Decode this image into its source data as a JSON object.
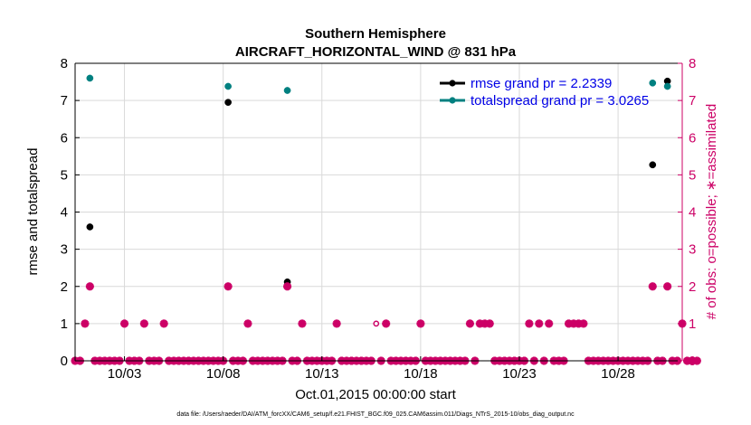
{
  "chart_data": {
    "type": "scatter",
    "title": "Southern Hemisphere",
    "subtitle": "AIRCRAFT_HORIZONTAL_WIND @ 831 hPa",
    "xlabel": "Oct.01,2015 00:00:00 start",
    "ylabel_left": "rmse and totalspread",
    "ylabel_right": "# of obs: o=possible; ∗=assimilated",
    "footnote": "data file: /Users/raeder/DAI/ATM_forcXX/CAM6_setup/f.e21.FHIST_BGC.f09_025.CAM6assim.011/Diags_NTrS_2015-10/obs_diag_output.nc",
    "xlim": [
      0.5,
      31.25
    ],
    "ylim_left": [
      0,
      8
    ],
    "ylim_right": [
      0,
      8
    ],
    "x_ticks": [
      {
        "x": 3,
        "label": "10/03"
      },
      {
        "x": 8,
        "label": "10/08"
      },
      {
        "x": 13,
        "label": "10/13"
      },
      {
        "x": 18,
        "label": "10/18"
      },
      {
        "x": 23,
        "label": "10/23"
      },
      {
        "x": 28,
        "label": "10/28"
      }
    ],
    "y_ticks_left": [
      "0",
      "1",
      "2",
      "3",
      "4",
      "5",
      "6",
      "7",
      "8"
    ],
    "y_ticks_right": [
      "0",
      "1",
      "2",
      "3",
      "4",
      "5",
      "6",
      "7",
      "8"
    ],
    "legend": [
      {
        "label": "rmse grand pr = 2.2339",
        "color": "#000000"
      },
      {
        "label": "totalspread grand pr = 3.0265",
        "color": "#008080"
      }
    ],
    "series": [
      {
        "name": "rmse",
        "color": "#000000",
        "points": [
          [
            1.25,
            3.6
          ],
          [
            8.25,
            6.95
          ],
          [
            11.25,
            2.12
          ],
          [
            29.75,
            5.27
          ],
          [
            30.5,
            7.52
          ]
        ]
      },
      {
        "name": "totalspread",
        "color": "#008080",
        "points": [
          [
            1.25,
            7.6
          ],
          [
            8.25,
            7.38
          ],
          [
            11.25,
            7.27
          ],
          [
            29.75,
            7.47
          ],
          [
            30.5,
            7.38
          ]
        ]
      },
      {
        "name": "obs possible",
        "color": "#cc0066",
        "marker": "open-circle",
        "points": [
          [
            15.75,
            1
          ]
        ]
      },
      {
        "name": "obs assimilated",
        "color": "#cc0066",
        "marker": "star",
        "points": [
          [
            0.5,
            0
          ],
          [
            0.75,
            0
          ],
          [
            1,
            1
          ],
          [
            1.25,
            2
          ],
          [
            1.5,
            0
          ],
          [
            1.75,
            0
          ],
          [
            2,
            0
          ],
          [
            2.25,
            0
          ],
          [
            2.5,
            0
          ],
          [
            2.75,
            0
          ],
          [
            3,
            1
          ],
          [
            3.25,
            0
          ],
          [
            3.5,
            0
          ],
          [
            3.75,
            0
          ],
          [
            4,
            1
          ],
          [
            4.25,
            0
          ],
          [
            4.5,
            0
          ],
          [
            4.75,
            0
          ],
          [
            5,
            1
          ],
          [
            5.25,
            0
          ],
          [
            5.5,
            0
          ],
          [
            5.75,
            0
          ],
          [
            6,
            0
          ],
          [
            6.25,
            0
          ],
          [
            6.5,
            0
          ],
          [
            6.75,
            0
          ],
          [
            7,
            0
          ],
          [
            7.25,
            0
          ],
          [
            7.5,
            0
          ],
          [
            7.75,
            0
          ],
          [
            8,
            0
          ],
          [
            8.25,
            2
          ],
          [
            8.5,
            0
          ],
          [
            8.75,
            0
          ],
          [
            9,
            0
          ],
          [
            9.25,
            1
          ],
          [
            9.5,
            0
          ],
          [
            9.75,
            0
          ],
          [
            10,
            0
          ],
          [
            10.25,
            0
          ],
          [
            10.5,
            0
          ],
          [
            10.75,
            0
          ],
          [
            11,
            0
          ],
          [
            11.25,
            2
          ],
          [
            11.5,
            0
          ],
          [
            11.75,
            0
          ],
          [
            12,
            1
          ],
          [
            12.25,
            0
          ],
          [
            12.5,
            0
          ],
          [
            12.75,
            0
          ],
          [
            13,
            0
          ],
          [
            13.25,
            0
          ],
          [
            13.5,
            0
          ],
          [
            13.75,
            1
          ],
          [
            14,
            0
          ],
          [
            14.25,
            0
          ],
          [
            14.5,
            0
          ],
          [
            14.75,
            0
          ],
          [
            15,
            0
          ],
          [
            15.25,
            0
          ],
          [
            15.5,
            0
          ],
          [
            16,
            0
          ],
          [
            16.25,
            1
          ],
          [
            16.5,
            0
          ],
          [
            16.75,
            0
          ],
          [
            17,
            0
          ],
          [
            17.25,
            0
          ],
          [
            17.5,
            0
          ],
          [
            17.75,
            0
          ],
          [
            18,
            1
          ],
          [
            18.25,
            0
          ],
          [
            18.5,
            0
          ],
          [
            18.75,
            0
          ],
          [
            19,
            0
          ],
          [
            19.25,
            0
          ],
          [
            19.5,
            0
          ],
          [
            19.75,
            0
          ],
          [
            20,
            0
          ],
          [
            20.25,
            0
          ],
          [
            20.5,
            1
          ],
          [
            20.75,
            0
          ],
          [
            21,
            1
          ],
          [
            21.25,
            1
          ],
          [
            21.5,
            1
          ],
          [
            21.75,
            0
          ],
          [
            22,
            0
          ],
          [
            22.25,
            0
          ],
          [
            22.5,
            0
          ],
          [
            22.75,
            0
          ],
          [
            23,
            0
          ],
          [
            23.25,
            0
          ],
          [
            23.5,
            1
          ],
          [
            23.75,
            0
          ],
          [
            24,
            1
          ],
          [
            24.25,
            0
          ],
          [
            24.5,
            1
          ],
          [
            24.75,
            0
          ],
          [
            25,
            0
          ],
          [
            25.25,
            0
          ],
          [
            25.5,
            1
          ],
          [
            25.75,
            1
          ],
          [
            26,
            1
          ],
          [
            26.25,
            1
          ],
          [
            26.5,
            0
          ],
          [
            26.75,
            0
          ],
          [
            27,
            0
          ],
          [
            27.25,
            0
          ],
          [
            27.5,
            0
          ],
          [
            27.75,
            0
          ],
          [
            28,
            0
          ],
          [
            28.25,
            0
          ],
          [
            28.5,
            0
          ],
          [
            28.75,
            0
          ],
          [
            29,
            0
          ],
          [
            29.25,
            0
          ],
          [
            29.5,
            0
          ],
          [
            29.75,
            2
          ],
          [
            30,
            0
          ],
          [
            30.25,
            0
          ],
          [
            30.5,
            2
          ],
          [
            30.75,
            0
          ],
          [
            31,
            0
          ],
          [
            31.25,
            1
          ],
          [
            31.5,
            0
          ],
          [
            31.75,
            0
          ],
          [
            32,
            0
          ]
        ]
      }
    ]
  }
}
